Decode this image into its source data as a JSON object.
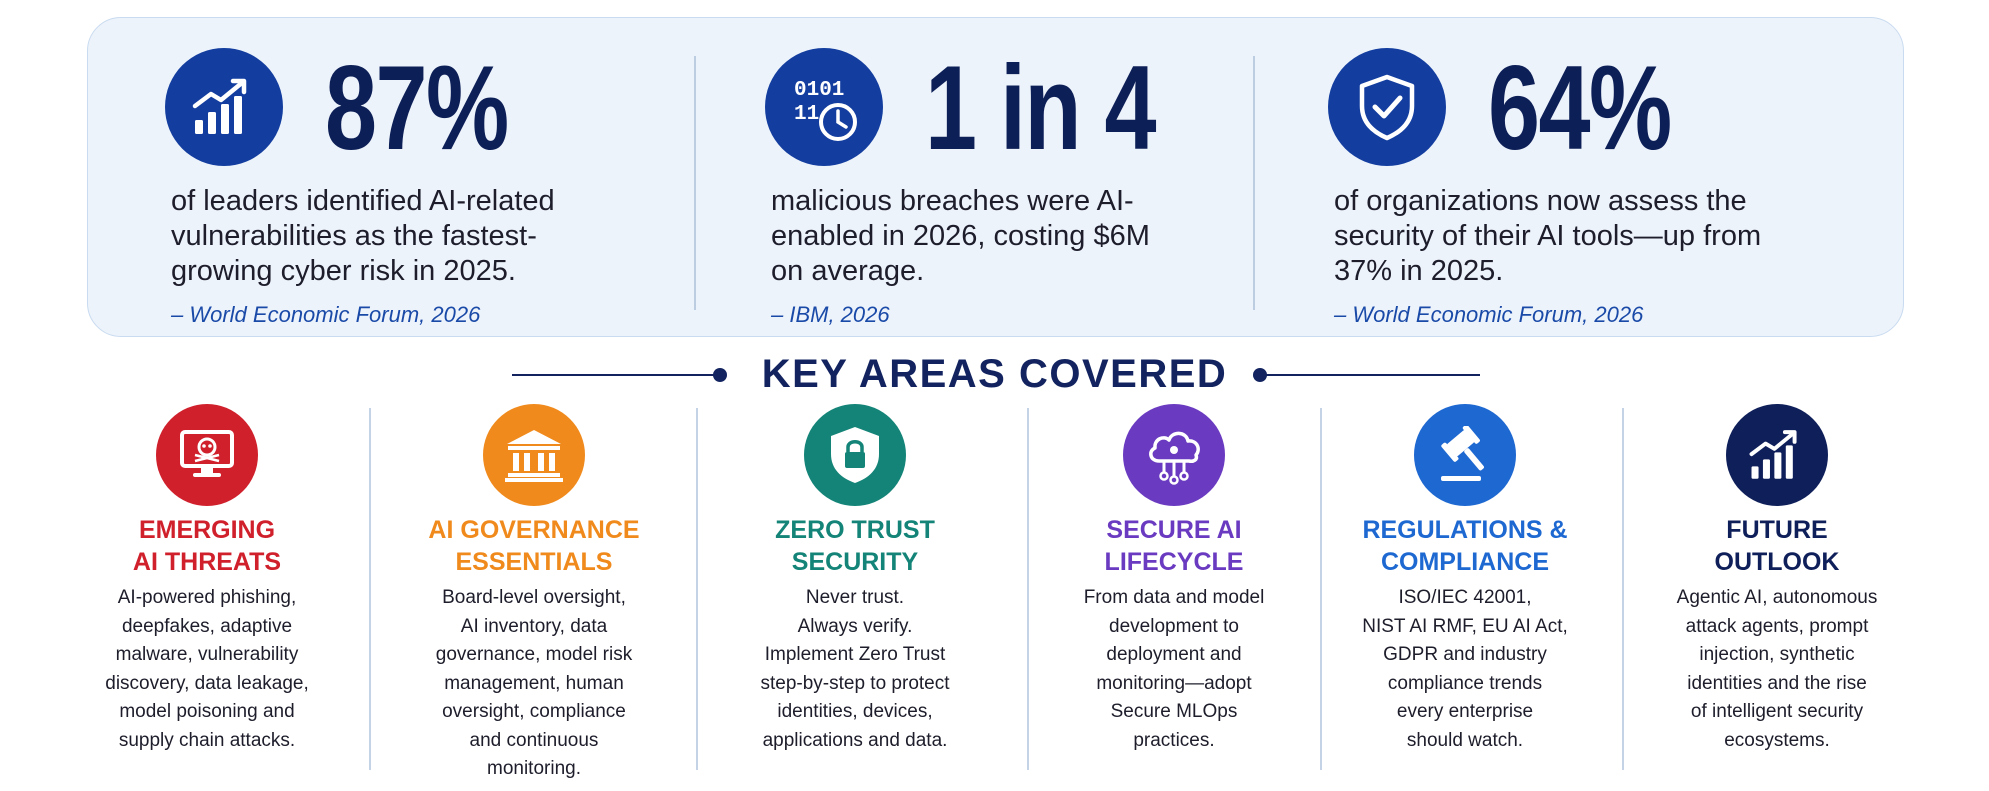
{
  "stats": [
    {
      "icon": "chart-growth-icon",
      "value": "87%",
      "description": "of leaders identified AI-related vulnerabilities as the fastest-growing cyber risk in 2025.",
      "source": "– World Economic Forum, 2026"
    },
    {
      "icon": "binary-clock-icon",
      "value": "1 in 4",
      "description": "malicious breaches were AI-enabled in 2026, costing $6M on average.",
      "source": "– IBM, 2026"
    },
    {
      "icon": "shield-check-icon",
      "value": "64%",
      "description": "of organizations now assess the security of their AI tools—up from 37% in 2025.",
      "source": "– World Economic Forum, 2026"
    }
  ],
  "key_areas": {
    "title": "KEY AREAS COVERED",
    "items": [
      {
        "icon": "monitor-skull-icon",
        "color": "#d0202c",
        "title": "EMERGING\nAI THREATS",
        "description": "AI-powered phishing,\ndeepfakes, adaptive\nmalware, vulnerability\ndiscovery, data leakage,\nmodel poisoning and\nsupply chain attacks."
      },
      {
        "icon": "institution-icon",
        "color": "#f08a1c",
        "title": "AI GOVERNANCE\nESSENTIALS",
        "description": "Board-level oversight,\nAI inventory, data\ngovernance, model risk\nmanagement, human\noversight, compliance\nand continuous\nmonitoring."
      },
      {
        "icon": "shield-lock-icon",
        "color": "#138477",
        "title": "ZERO TRUST\nSECURITY",
        "description": "Never trust.\nAlways verify.\nImplement Zero Trust\nstep-by-step to protect\nidentities, devices,\napplications and data."
      },
      {
        "icon": "cloud-circuit-icon",
        "color": "#6a3bc0",
        "title": "SECURE AI\nLIFECYCLE",
        "description": "From data and model\ndevelopment to\ndeployment and\nmonitoring—adopt\nSecure MLOps\npractices."
      },
      {
        "icon": "gavel-icon",
        "color": "#1e68d1",
        "title": "REGULATIONS &\nCOMPLIANCE",
        "description": "ISO/IEC 42001,\nNIST AI RMF, EU AI Act,\nGDPR and industry\ncompliance trends\nevery enterprise\nshould watch."
      },
      {
        "icon": "chart-growth-icon",
        "color": "#0f1f5a",
        "title": "FUTURE\nOUTLOOK",
        "description": "Agentic AI, autonomous\nattack agents, prompt\ninjection, synthetic\nidentities and the rise\nof intelligent security\necosystems."
      }
    ]
  }
}
